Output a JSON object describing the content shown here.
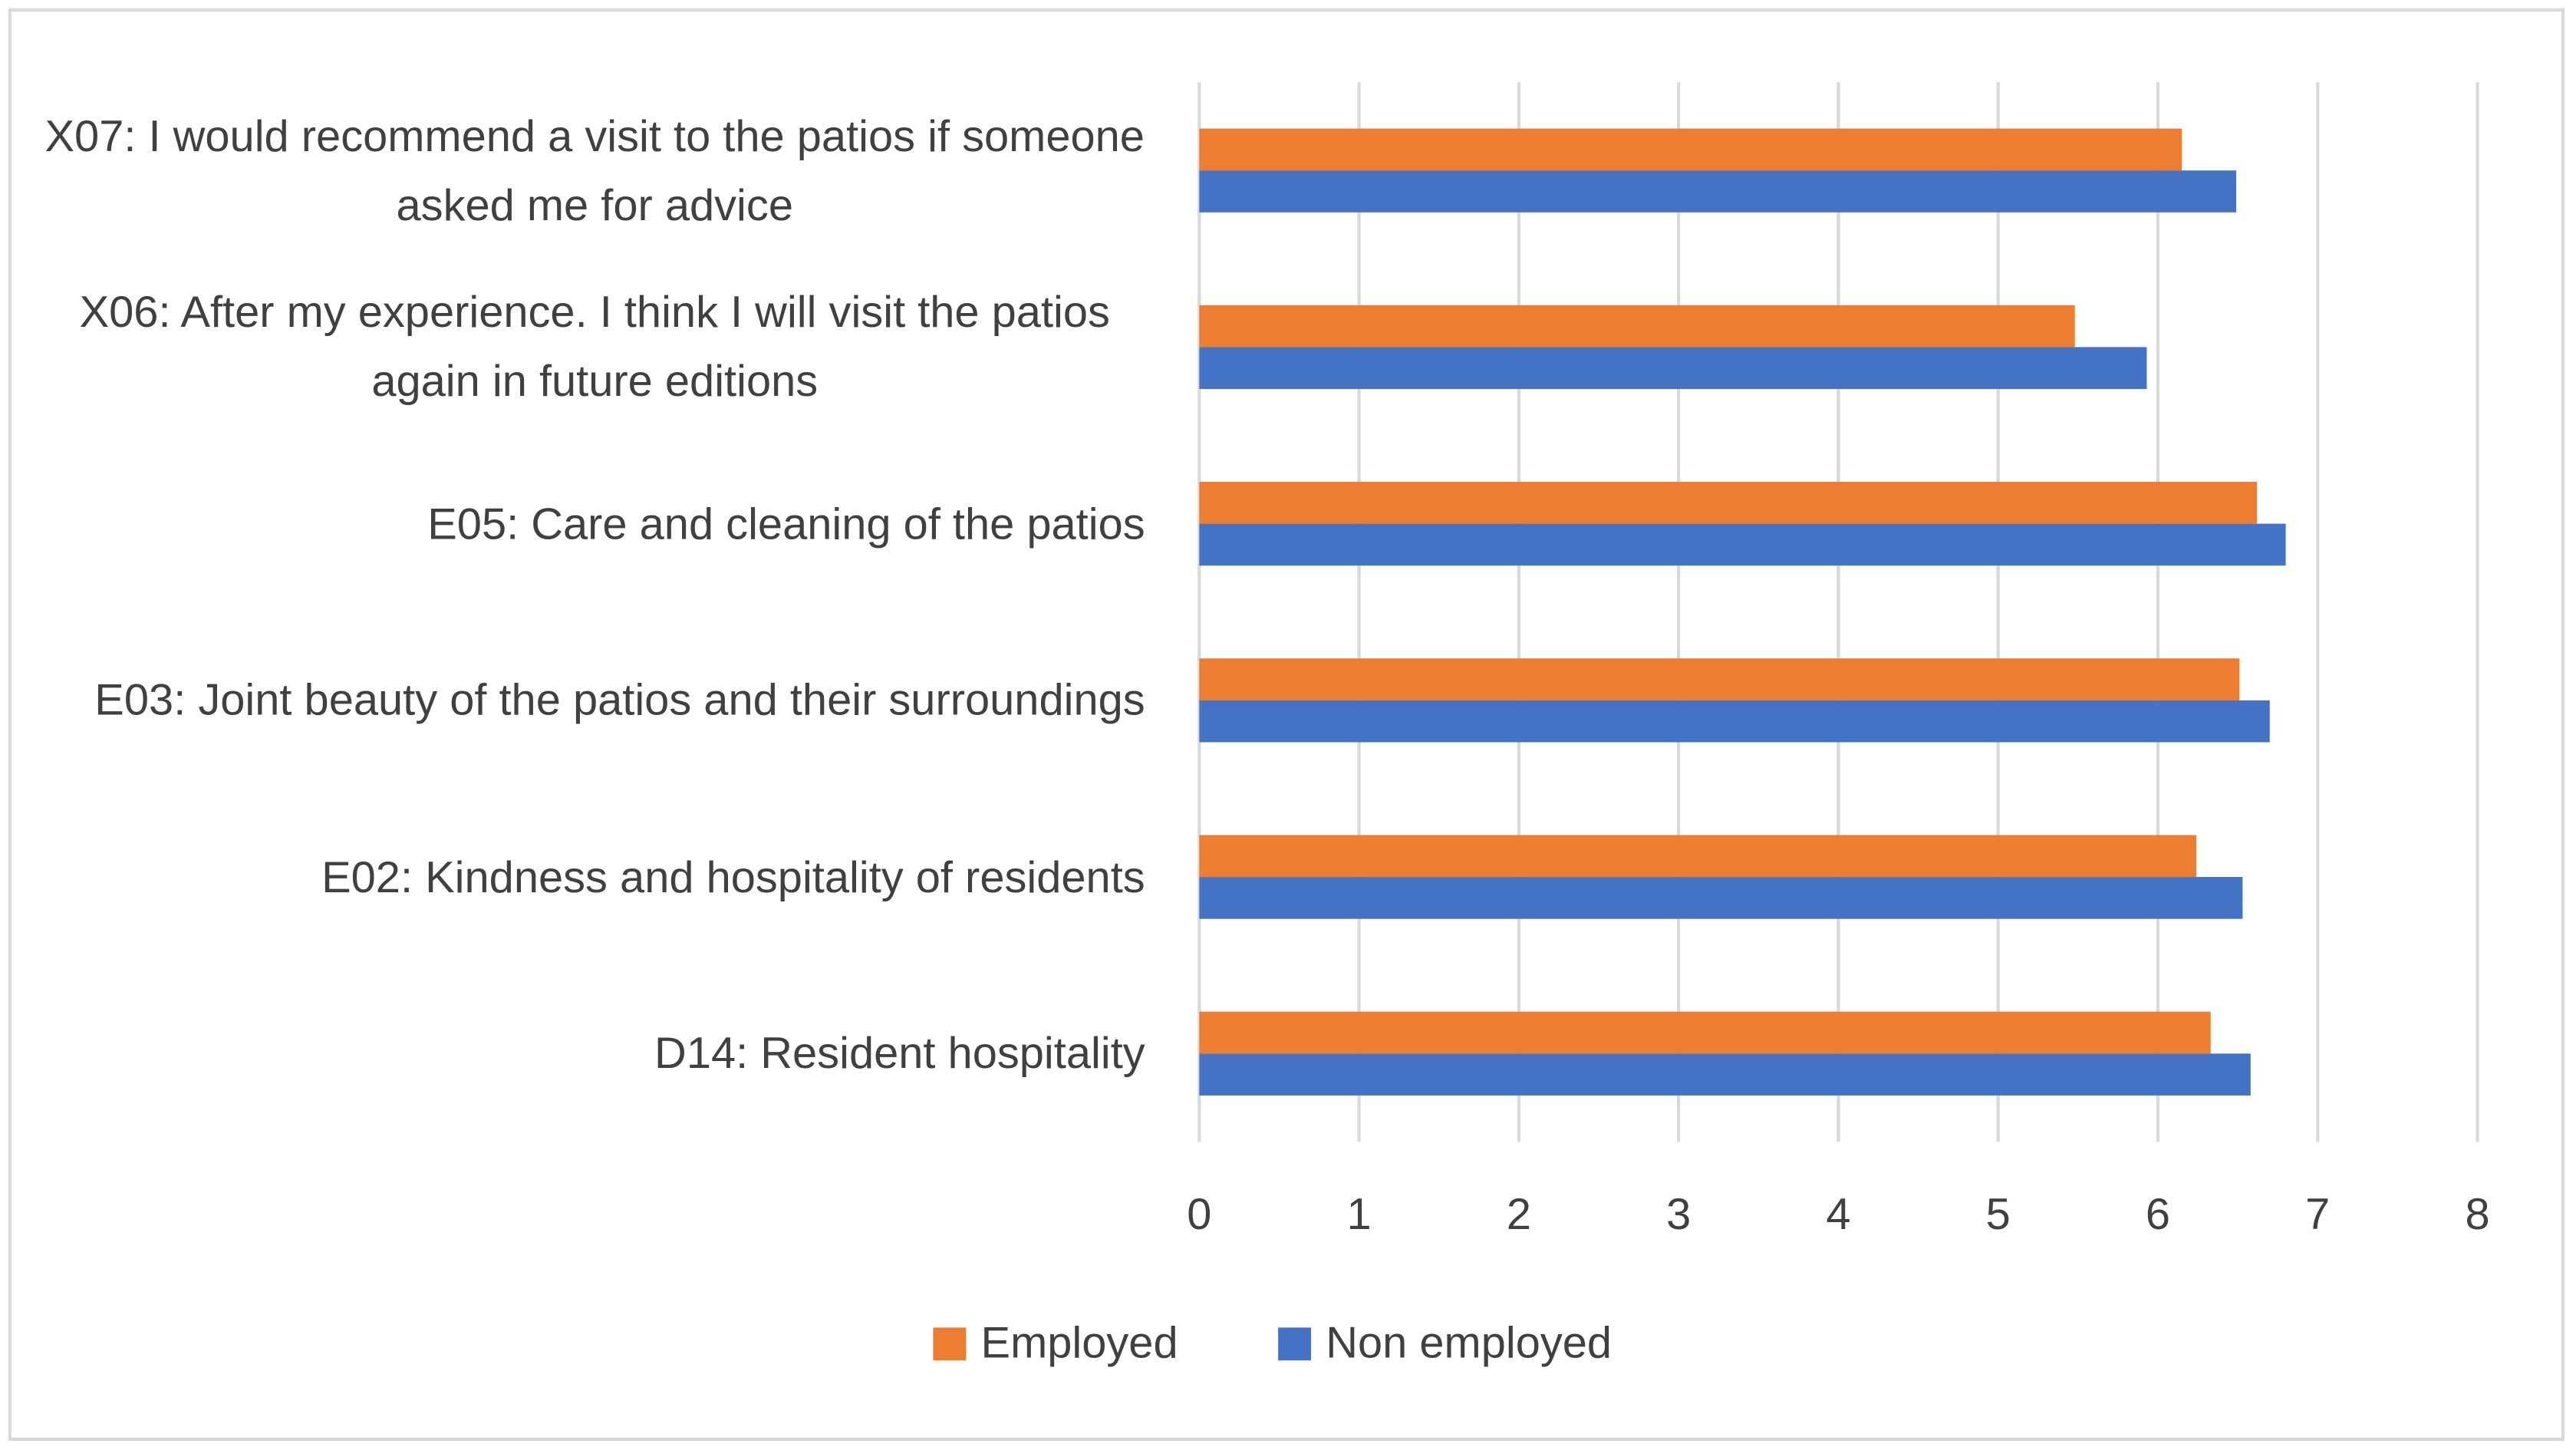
{
  "chart_data": {
    "type": "bar",
    "orientation": "horizontal",
    "categories": [
      "X07: I would recommend a visit to the patios if someone asked me for advice",
      "X06: After my experience. I think I will visit the patios again in future editions",
      "E05: Care and cleaning of the patios",
      "E03: Joint beauty of the patios and their surroundings",
      "E02: Kindness and hospitality of residents",
      "D14: Resident hospitality"
    ],
    "series": [
      {
        "name": "Employed",
        "color": "#ed7d31",
        "values": [
          6.15,
          5.48,
          6.62,
          6.51,
          6.24,
          6.33
        ]
      },
      {
        "name": "Non employed",
        "color": "#4472c4",
        "values": [
          6.49,
          5.93,
          6.8,
          6.7,
          6.53,
          6.58
        ]
      }
    ],
    "xlim": [
      0,
      8
    ],
    "xticks": [
      0,
      1,
      2,
      3,
      4,
      5,
      6,
      7,
      8
    ],
    "grid": true,
    "legend": "bottom"
  }
}
